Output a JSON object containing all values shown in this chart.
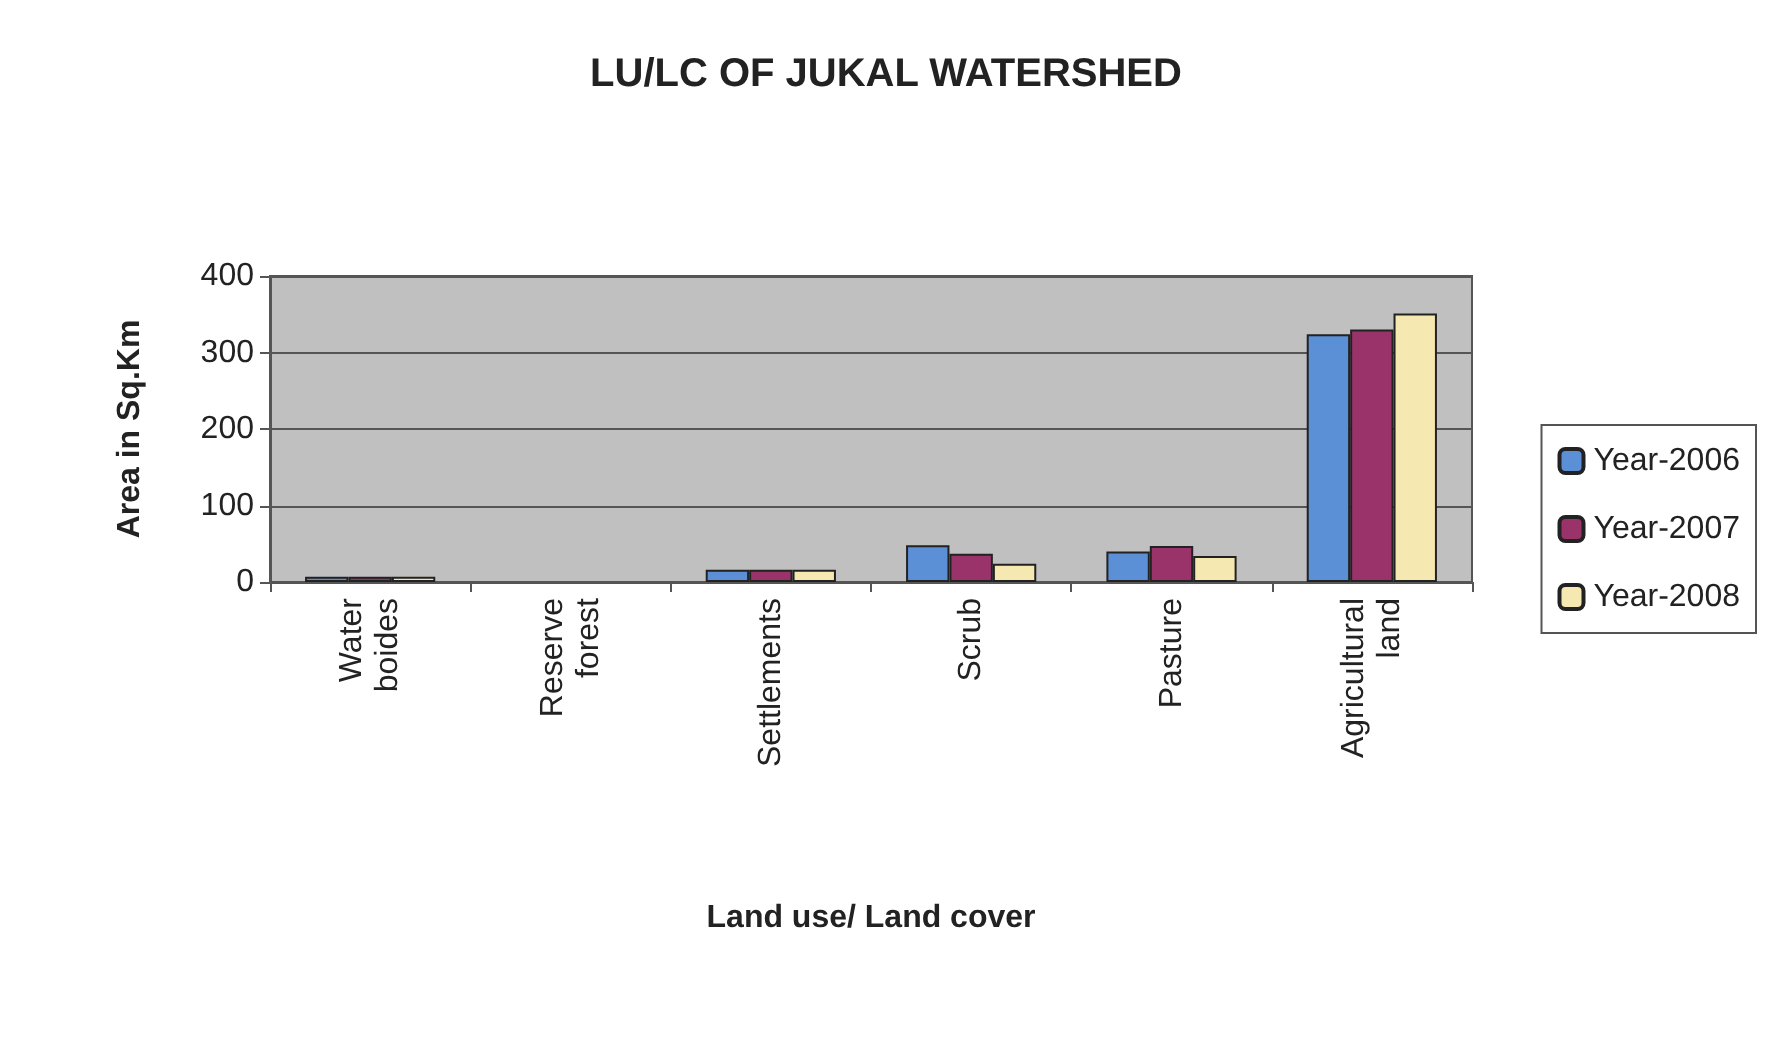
{
  "chart_data": {
    "type": "bar",
    "title": "LU/LC OF JUKAL WATERSHED",
    "xlabel": "Land use/ Land cover",
    "ylabel": "Area in Sq.Km",
    "categories": [
      "Water boides",
      "Reserve forest",
      "Settlements",
      "Scrub",
      "Pasture",
      "Agricultural land"
    ],
    "series": [
      {
        "name": "Year-2006",
        "color": "#5b8fd6",
        "values": [
          7,
          0,
          16,
          48,
          40,
          324
        ]
      },
      {
        "name": "Year-2007",
        "color": "#99336a",
        "values": [
          7,
          0,
          16,
          37,
          47,
          330
        ]
      },
      {
        "name": "Year-2008",
        "color": "#f5e8b0",
        "values": [
          7,
          0,
          16,
          24,
          34,
          351
        ]
      }
    ],
    "ylim": [
      0,
      400
    ],
    "yticks": [
      0,
      100,
      200,
      300,
      400
    ],
    "grid": "y",
    "legend": "right"
  }
}
